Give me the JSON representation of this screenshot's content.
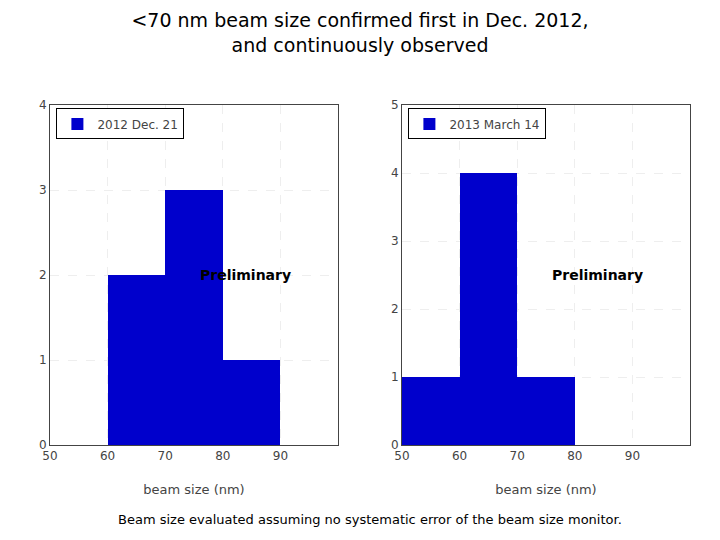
{
  "chart_data": [
    {
      "type": "histogram",
      "title": "<70 nm beam size confirmed first in Dec. 2012,\nand continuously observed",
      "subtitle": "Beam size evaluated assuming no systematic error of the beam size monitor.",
      "bins": [
        50,
        60,
        70,
        80,
        90,
        100
      ],
      "series": [
        {
          "name": "2012 Dec. 21",
          "color": "#0000CC",
          "values": [
            0,
            2,
            3,
            1,
            0
          ]
        }
      ],
      "xlim": [
        50,
        100
      ],
      "xticks": [
        50,
        60,
        70,
        80,
        90
      ],
      "ylim": [
        0,
        4
      ],
      "yticks": [
        0,
        1,
        2,
        3,
        4
      ],
      "xlabel": "beam size (nm)",
      "annotations": [
        "Preliminary"
      ],
      "grid": true,
      "legend": "upper left"
    },
    {
      "type": "histogram",
      "bins": [
        50,
        60,
        70,
        80,
        90,
        100
      ],
      "series": [
        {
          "name": "2013 March 14",
          "color": "#0000CC",
          "values": [
            1,
            4,
            1,
            0,
            0
          ]
        }
      ],
      "xlim": [
        50,
        100
      ],
      "xticks": [
        50,
        60,
        70,
        80,
        90
      ],
      "ylim": [
        0,
        5
      ],
      "yticks": [
        0,
        1,
        2,
        3,
        4,
        5
      ],
      "xlabel": "beam size (nm)",
      "annotations": [
        "Preliminary"
      ],
      "grid": true,
      "legend": "upper left"
    }
  ]
}
